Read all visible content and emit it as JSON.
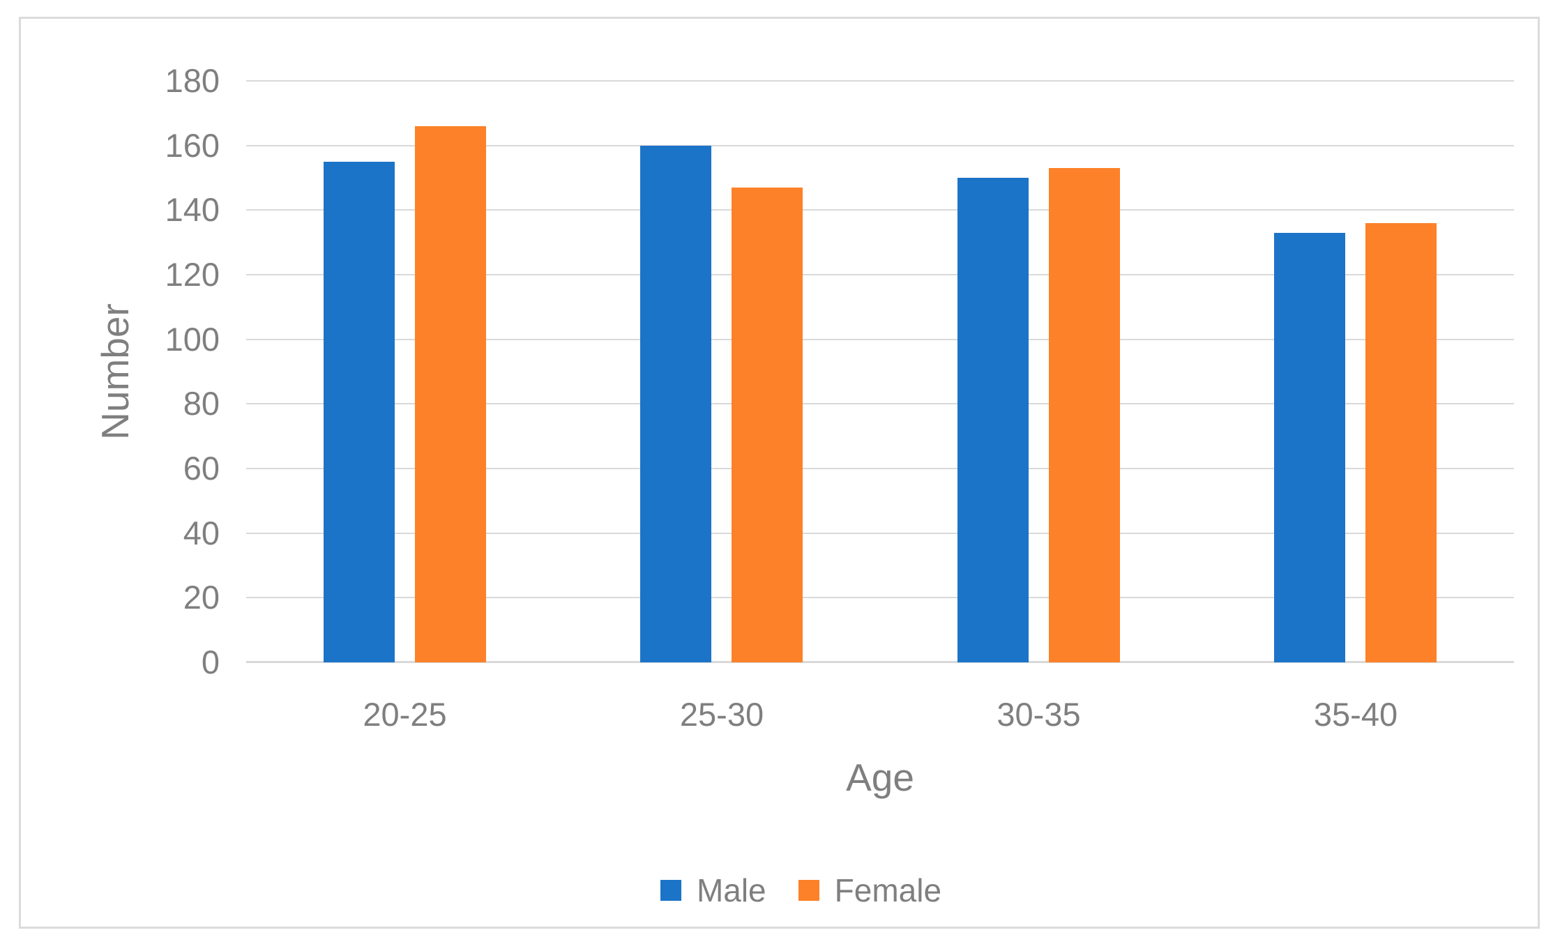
{
  "chart_data": {
    "type": "bar",
    "title": "",
    "categories": [
      "20-25",
      "25-30",
      "30-35",
      "35-40"
    ],
    "series": [
      {
        "name": "Male",
        "color": "#1B74C8",
        "values": [
          155,
          160,
          150,
          133
        ]
      },
      {
        "name": "Female",
        "color": "#FD8128",
        "values": [
          166,
          147,
          153,
          136
        ]
      }
    ],
    "xlabel": "Age",
    "ylabel": "Number",
    "ylim": [
      0,
      180
    ],
    "yticks": [
      0,
      20,
      40,
      60,
      80,
      100,
      120,
      140,
      160,
      180
    ],
    "grid": true,
    "legend_position": "bottom",
    "legend_labels": [
      "Male",
      "Female"
    ]
  },
  "style": {
    "text_color": "#7F7F7F",
    "grid_color": "#D9D9D9",
    "frame_border_color": "#DBDBDB",
    "background": "#FFFFFF"
  }
}
